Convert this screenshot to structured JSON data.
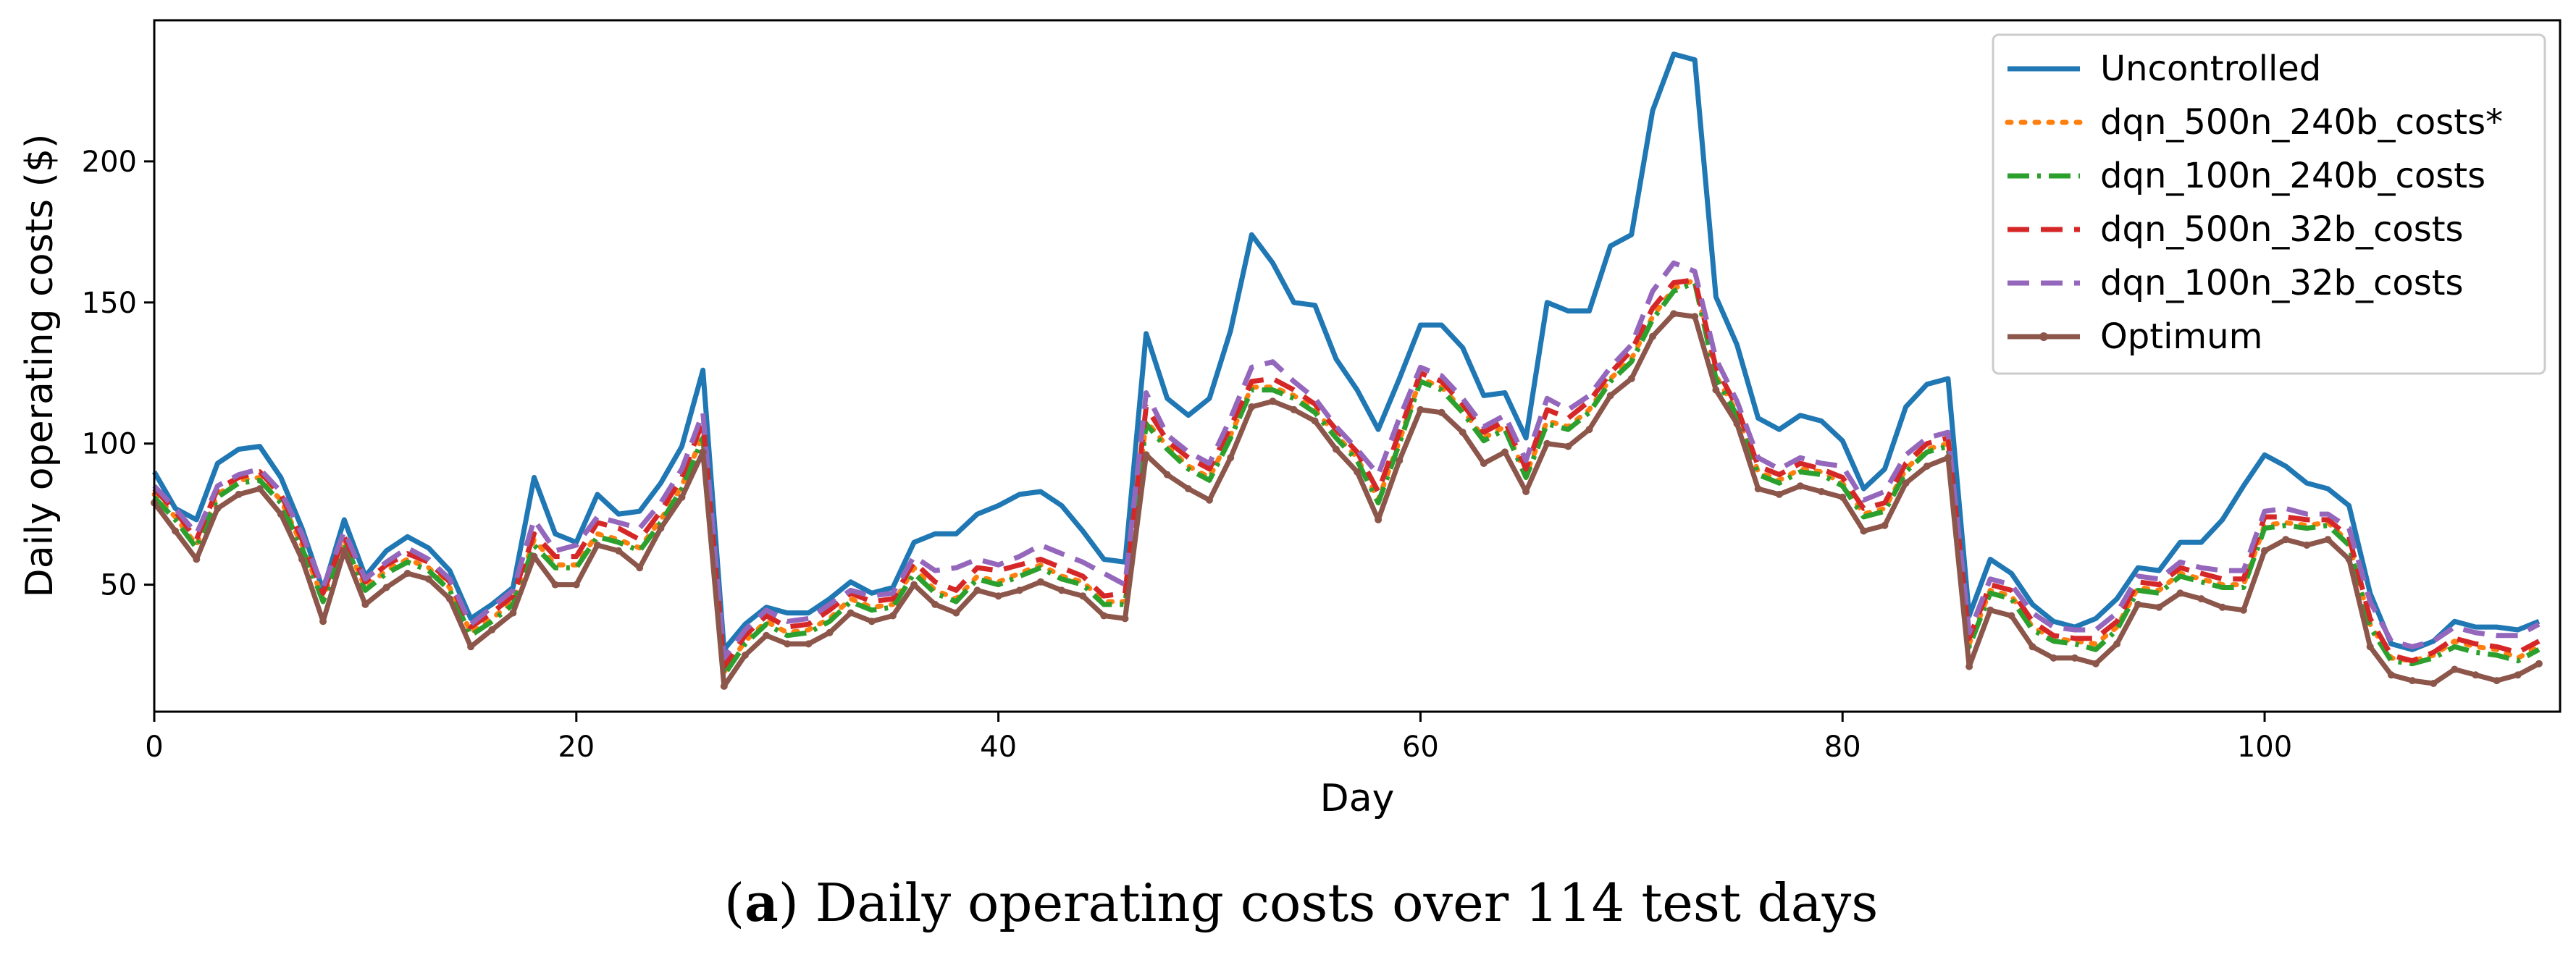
{
  "chart_data": {
    "type": "line",
    "title": "",
    "xlabel": "Day",
    "ylabel": "Daily operating costs ($)",
    "xlim": [
      0,
      114
    ],
    "ylim": [
      5,
      250
    ],
    "xticks": [
      0,
      20,
      40,
      60,
      80,
      100
    ],
    "yticks": [
      50,
      100,
      150,
      200
    ],
    "grid": false,
    "legend_position": "top-right",
    "x": [
      0,
      1,
      2,
      3,
      4,
      5,
      6,
      7,
      8,
      9,
      10,
      11,
      12,
      13,
      14,
      15,
      16,
      17,
      18,
      19,
      20,
      21,
      22,
      23,
      24,
      25,
      26,
      27,
      28,
      29,
      30,
      31,
      32,
      33,
      34,
      35,
      36,
      37,
      38,
      39,
      40,
      41,
      42,
      43,
      44,
      45,
      46,
      47,
      48,
      49,
      50,
      51,
      52,
      53,
      54,
      55,
      56,
      57,
      58,
      59,
      60,
      61,
      62,
      63,
      64,
      65,
      66,
      67,
      68,
      69,
      70,
      71,
      72,
      73,
      74,
      75,
      76,
      77,
      78,
      79,
      80,
      81,
      82,
      83,
      84,
      85,
      86,
      87,
      88,
      89,
      90,
      91,
      92,
      93,
      94,
      95,
      96,
      97,
      98,
      99,
      100,
      101,
      102,
      103,
      104,
      105,
      106,
      107,
      108,
      109,
      110,
      111,
      112,
      113
    ],
    "series": [
      {
        "name": "Uncontrolled",
        "color": "#1f77b4",
        "style": "solid",
        "values": [
          90,
          77,
          73,
          93,
          98,
          99,
          88,
          70,
          48,
          73,
          53,
          62,
          67,
          63,
          55,
          38,
          43,
          49,
          88,
          68,
          65,
          82,
          75,
          76,
          86,
          99,
          126,
          27,
          36,
          42,
          40,
          40,
          45,
          51,
          47,
          49,
          65,
          68,
          68,
          75,
          78,
          82,
          83,
          78,
          69,
          59,
          58,
          139,
          116,
          110,
          116,
          140,
          174,
          164,
          150,
          149,
          130,
          119,
          105,
          123,
          142,
          142,
          134,
          117,
          118,
          102,
          150,
          147,
          147,
          170,
          174,
          218,
          238,
          236,
          152,
          135,
          109,
          105,
          110,
          108,
          101,
          84,
          91,
          113,
          121,
          123,
          39,
          59,
          54,
          43,
          37,
          35,
          38,
          45,
          56,
          55,
          65,
          65,
          73,
          85,
          96,
          92,
          86,
          84,
          78,
          47,
          29,
          27,
          30,
          37,
          35,
          35,
          34,
          37
        ]
      },
      {
        "name": "dqn_500n_240b_costs*",
        "color": "#ff7f0e",
        "style": "dotted",
        "values": [
          82,
          74,
          64,
          82,
          87,
          88,
          80,
          64,
          45,
          66,
          49,
          55,
          59,
          56,
          49,
          33,
          38,
          44,
          66,
          57,
          57,
          68,
          66,
          63,
          73,
          85,
          103,
          19,
          30,
          37,
          33,
          34,
          38,
          45,
          42,
          43,
          56,
          48,
          45,
          53,
          51,
          54,
          57,
          53,
          51,
          44,
          44,
          108,
          99,
          92,
          88,
          103,
          120,
          120,
          117,
          112,
          103,
          95,
          80,
          101,
          123,
          120,
          112,
          102,
          106,
          89,
          108,
          106,
          112,
          123,
          130,
          145,
          155,
          158,
          124,
          111,
          90,
          87,
          91,
          90,
          86,
          75,
          77,
          91,
          98,
          100,
          29,
          48,
          46,
          35,
          31,
          30,
          29,
          35,
          49,
          48,
          54,
          52,
          50,
          50,
          71,
          72,
          71,
          72,
          65,
          36,
          24,
          23,
          25,
          30,
          28,
          27,
          24,
          28
        ]
      },
      {
        "name": "dqn_100n_240b_costs",
        "color": "#2ca02c",
        "style": "dashdot",
        "values": [
          81,
          73,
          63,
          81,
          86,
          87,
          79,
          63,
          44,
          65,
          48,
          54,
          58,
          55,
          48,
          32,
          37,
          43,
          64,
          56,
          56,
          67,
          65,
          62,
          72,
          84,
          102,
          18,
          29,
          36,
          32,
          33,
          37,
          44,
          41,
          42,
          54,
          47,
          44,
          52,
          50,
          53,
          56,
          52,
          50,
          43,
          43,
          107,
          98,
          91,
          87,
          102,
          119,
          119,
          116,
          111,
          102,
          94,
          79,
          100,
          122,
          119,
          111,
          101,
          105,
          88,
          107,
          105,
          111,
          122,
          129,
          144,
          154,
          157,
          123,
          110,
          89,
          86,
          90,
          89,
          85,
          74,
          76,
          90,
          97,
          99,
          28,
          47,
          45,
          34,
          30,
          29,
          27,
          34,
          48,
          47,
          53,
          51,
          49,
          49,
          70,
          71,
          70,
          71,
          64,
          35,
          23,
          22,
          24,
          28,
          26,
          25,
          23,
          27
        ]
      },
      {
        "name": "dqn_500n_32b_costs",
        "color": "#d62728",
        "style": "dashed",
        "values": [
          84,
          76,
          66,
          84,
          88,
          90,
          82,
          66,
          47,
          67,
          51,
          57,
          61,
          58,
          51,
          35,
          40,
          46,
          68,
          60,
          60,
          72,
          70,
          66,
          76,
          88,
          108,
          21,
          32,
          39,
          35,
          36,
          41,
          47,
          44,
          45,
          58,
          51,
          48,
          56,
          55,
          57,
          59,
          56,
          53,
          46,
          47,
          113,
          101,
          95,
          91,
          106,
          122,
          123,
          119,
          114,
          105,
          97,
          83,
          104,
          125,
          122,
          114,
          104,
          108,
          91,
          112,
          109,
          115,
          125,
          133,
          148,
          157,
          158,
          127,
          113,
          92,
          89,
          93,
          91,
          88,
          77,
          79,
          93,
          100,
          102,
          31,
          50,
          48,
          37,
          32,
          31,
          31,
          37,
          51,
          50,
          56,
          54,
          52,
          52,
          74,
          74,
          73,
          73,
          67,
          38,
          25,
          23,
          26,
          31,
          29,
          28,
          26,
          30
        ]
      },
      {
        "name": "dqn_100n_32b_costs",
        "color": "#9467bd",
        "style": "dashed",
        "values": [
          85,
          77,
          68,
          85,
          89,
          91,
          83,
          68,
          49,
          69,
          52,
          58,
          63,
          59,
          52,
          36,
          42,
          48,
          73,
          62,
          64,
          74,
          72,
          70,
          79,
          91,
          111,
          24,
          34,
          41,
          37,
          38,
          43,
          48,
          46,
          47,
          60,
          55,
          56,
          59,
          57,
          60,
          64,
          61,
          58,
          54,
          50,
          118,
          103,
          97,
          93,
          109,
          127,
          129,
          122,
          116,
          106,
          98,
          89,
          109,
          127,
          124,
          116,
          106,
          110,
          94,
          116,
          112,
          117,
          127,
          135,
          154,
          164,
          161,
          130,
          115,
          95,
          91,
          95,
          93,
          92,
          80,
          83,
          96,
          102,
          104,
          33,
          52,
          50,
          40,
          35,
          34,
          34,
          40,
          53,
          52,
          58,
          56,
          55,
          55,
          76,
          77,
          75,
          75,
          70,
          44,
          30,
          28,
          30,
          35,
          33,
          32,
          32,
          36
        ]
      },
      {
        "name": "Optimum",
        "color": "#8c564b",
        "style": "solid-marker",
        "values": [
          79,
          69,
          59,
          77,
          82,
          84,
          75,
          59,
          37,
          62,
          43,
          49,
          54,
          52,
          45,
          28,
          34,
          40,
          60,
          50,
          50,
          64,
          62,
          56,
          70,
          81,
          97,
          14,
          25,
          32,
          29,
          29,
          33,
          40,
          37,
          39,
          50,
          43,
          40,
          48,
          46,
          48,
          51,
          48,
          46,
          39,
          38,
          96,
          89,
          84,
          80,
          95,
          113,
          115,
          112,
          108,
          98,
          90,
          73,
          94,
          112,
          111,
          104,
          93,
          97,
          83,
          100,
          99,
          105,
          117,
          123,
          138,
          146,
          145,
          119,
          107,
          84,
          82,
          85,
          83,
          81,
          69,
          71,
          86,
          92,
          95,
          21,
          41,
          39,
          28,
          24,
          24,
          22,
          29,
          43,
          42,
          47,
          45,
          42,
          41,
          62,
          66,
          64,
          66,
          59,
          28,
          18,
          16,
          15,
          20,
          18,
          16,
          18,
          22
        ]
      }
    ],
    "caption_label": "a",
    "caption_open": "(",
    "caption_close": ")",
    "caption_text": " Daily operating costs over 114 test days"
  }
}
